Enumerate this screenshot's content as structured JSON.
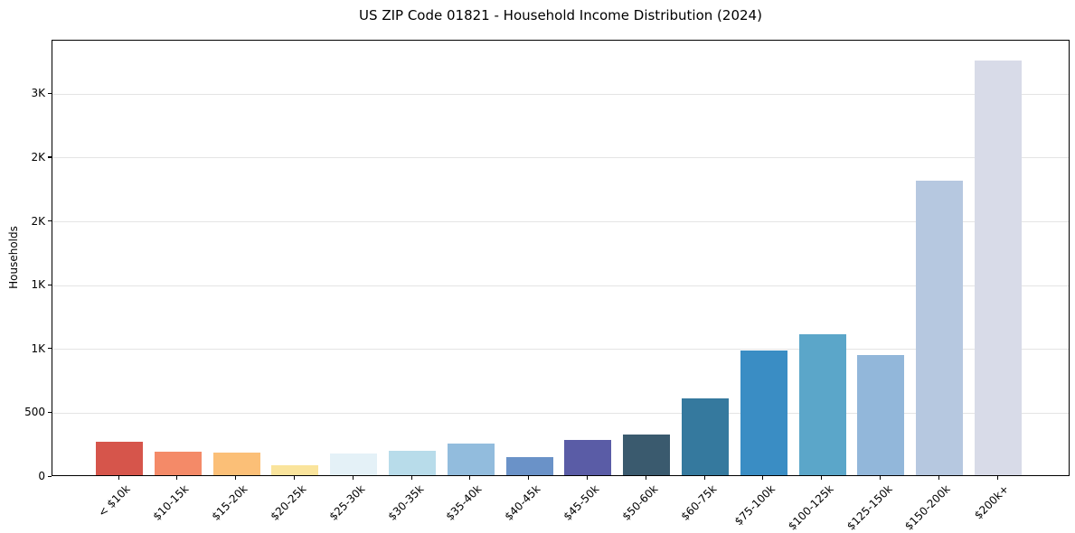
{
  "chart_data": {
    "type": "bar",
    "title": "US ZIP Code 01821 - Household Income Distribution (2024)",
    "xlabel": "",
    "ylabel": "Households",
    "categories": [
      "< $10k",
      "$10-15k",
      "$15-20k",
      "$20-25k",
      "$25-30k",
      "$30-35k",
      "$35-40k",
      "$40-45k",
      "$45-50k",
      "$50-60k",
      "$60-75k",
      "$75-100k",
      "$100-125k",
      "$125-150k",
      "$150-200k",
      "$200k+"
    ],
    "values": [
      260,
      185,
      175,
      78,
      170,
      190,
      248,
      145,
      275,
      320,
      605,
      980,
      1108,
      945,
      2310,
      3250
    ],
    "bar_colors": [
      "#d6554b",
      "#f48a68",
      "#fbbf77",
      "#fae49c",
      "#e4f1f7",
      "#b8dcea",
      "#92bcdd",
      "#6a92c8",
      "#5a5ca6",
      "#3a5a6e",
      "#35799e",
      "#3a8dc4",
      "#5ba6c9",
      "#92b7da",
      "#b6c8e0",
      "#d8dbe8"
    ],
    "ylim": [
      0,
      3420
    ],
    "yticks": [
      {
        "value": 0,
        "label": "0"
      },
      {
        "value": 500,
        "label": "500"
      },
      {
        "value": 1000,
        "label": "1K"
      },
      {
        "value": 1500,
        "label": "1K"
      },
      {
        "value": 2000,
        "label": "2K"
      },
      {
        "value": 2500,
        "label": "2K"
      },
      {
        "value": 3000,
        "label": "3K"
      }
    ],
    "grid": "horizontal",
    "legend_position": "none",
    "colors": {
      "grid": "#e4e4e4",
      "axis": "#000000",
      "text": "#000000",
      "background": "#ffffff"
    }
  }
}
